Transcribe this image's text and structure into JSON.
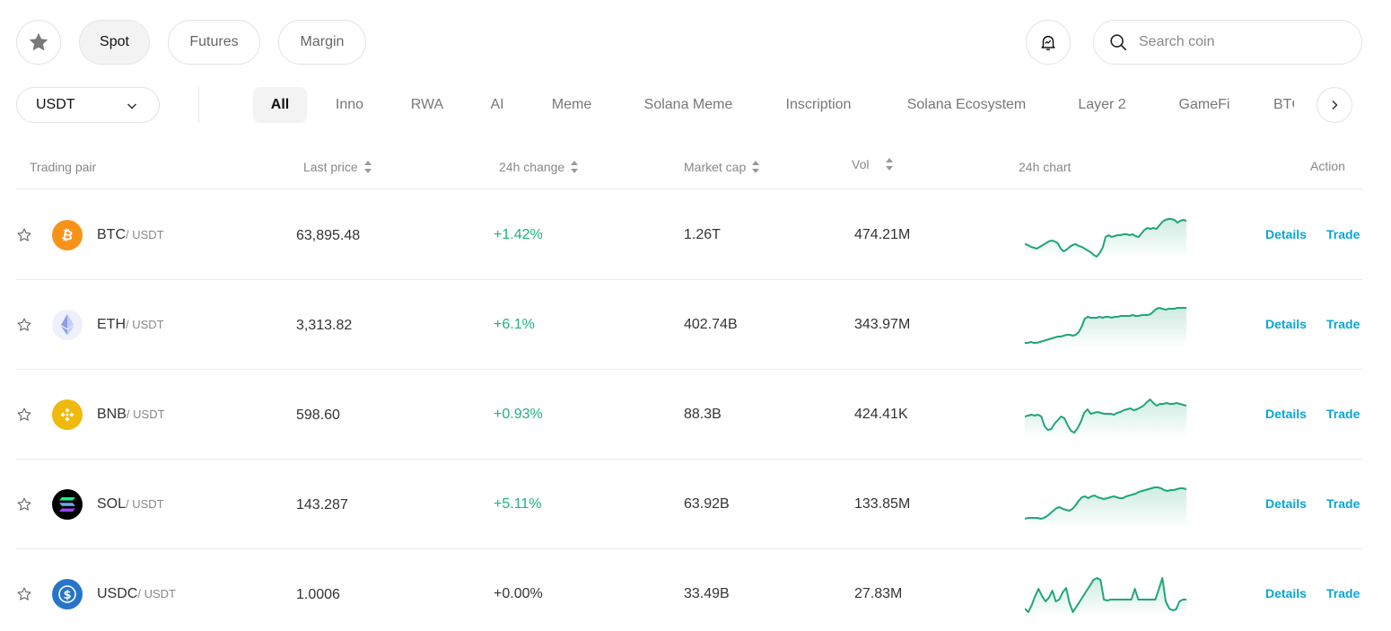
{
  "market_tabs": [
    {
      "label": "Spot",
      "active": true
    },
    {
      "label": "Futures",
      "active": false
    },
    {
      "label": "Margin",
      "active": false
    }
  ],
  "search": {
    "placeholder": "Search coin"
  },
  "quote_select": {
    "value": "USDT"
  },
  "categories": [
    "All",
    "Inno",
    "RWA",
    "AI",
    "Meme",
    "Solana Meme",
    "Inscription",
    "Solana Ecosystem",
    "Layer 2",
    "GameFi",
    "BTC"
  ],
  "active_category": "All",
  "columns": {
    "pair": "Trading pair",
    "price": "Last price",
    "change": "24h change",
    "mcap": "Market cap",
    "vol": "Vol",
    "chart": "24h chart",
    "action": "Action"
  },
  "rows": [
    {
      "base": "BTC",
      "quote": "/ USDT",
      "price": "63,895.48",
      "change": "+1.42%",
      "direction": "up",
      "mcap": "1.26T",
      "vol": "474.21M",
      "details": "Details",
      "trade": "Trade",
      "icon": "bitcoin-icon",
      "icon_color": "#f7931a",
      "spark": [
        30,
        31,
        33,
        34,
        35,
        33,
        31,
        29,
        27,
        26,
        27,
        29,
        35,
        38,
        36,
        33,
        31,
        30,
        32,
        33,
        35,
        37,
        39,
        42,
        44,
        40,
        34,
        22,
        20,
        22,
        21,
        20,
        20,
        19,
        19,
        20,
        19,
        21,
        22,
        18,
        14,
        12,
        13,
        12,
        13,
        9,
        5,
        3,
        2,
        2,
        3,
        6,
        4,
        3,
        4
      ]
    },
    {
      "base": "ETH",
      "quote": "/ USDT",
      "price": "3,313.82",
      "change": "+6.1%",
      "direction": "up",
      "mcap": "402.74B",
      "vol": "343.97M",
      "details": "Details",
      "trade": "Trade",
      "icon": "ethereum-icon",
      "icon_color": "#627eea",
      "spark": [
        40,
        40,
        39,
        40,
        40,
        39,
        38,
        37,
        36,
        35,
        34,
        33,
        33,
        32,
        31,
        31,
        32,
        31,
        28,
        22,
        13,
        11,
        12,
        12,
        12,
        11,
        12,
        11,
        11,
        12,
        11,
        11,
        10,
        10,
        10,
        10,
        9,
        10,
        10,
        9,
        9,
        9,
        8,
        5,
        2,
        1,
        2,
        3,
        2,
        2,
        2,
        1,
        1,
        1,
        1
      ]
    },
    {
      "base": "BNB",
      "quote": "/ USDT",
      "price": "598.60",
      "change": "+0.93%",
      "direction": "up",
      "mcap": "88.3B",
      "vol": "424.41K",
      "details": "Details",
      "trade": "Trade",
      "icon": "bnb-icon",
      "icon_color": "#f0b90b",
      "spark": [
        22,
        21,
        20,
        21,
        20,
        22,
        33,
        37,
        36,
        30,
        26,
        22,
        24,
        32,
        38,
        40,
        35,
        28,
        18,
        14,
        19,
        18,
        17,
        18,
        19,
        19,
        19,
        20,
        18,
        17,
        15,
        14,
        13,
        15,
        14,
        12,
        10,
        6,
        3,
        7,
        10,
        8,
        8,
        7,
        8,
        8,
        7,
        8,
        9,
        10
      ]
    },
    {
      "base": "SOL",
      "quote": "/ USDT",
      "price": "143.287",
      "change": "+5.11%",
      "direction": "up",
      "mcap": "63.92B",
      "vol": "133.85M",
      "details": "Details",
      "trade": "Trade",
      "icon": "solana-icon",
      "icon_color": "#000000",
      "spark": [
        36,
        35,
        35,
        35,
        35,
        36,
        35,
        33,
        30,
        27,
        24,
        23,
        25,
        26,
        27,
        25,
        21,
        16,
        12,
        11,
        13,
        11,
        10,
        12,
        13,
        14,
        13,
        12,
        11,
        12,
        13,
        13,
        11,
        10,
        9,
        8,
        6,
        5,
        4,
        3,
        2,
        1,
        1,
        2,
        4,
        5,
        4,
        4,
        3,
        2,
        2,
        3
      ]
    },
    {
      "base": "USDC",
      "quote": "/ USDT",
      "price": "1.0006",
      "change": "+0.00%",
      "direction": "flat",
      "mcap": "33.49B",
      "vol": "27.83M",
      "details": "Details",
      "trade": "Trade",
      "icon": "usdc-icon",
      "icon_color": "#2775ca",
      "spark": [
        36,
        40,
        32,
        22,
        14,
        22,
        28,
        24,
        16,
        28,
        26,
        18,
        13,
        30,
        40,
        34,
        28,
        22,
        16,
        10,
        4,
        2,
        4,
        26,
        27,
        26,
        26,
        26,
        26,
        26,
        26,
        26,
        14,
        26,
        26,
        26,
        26,
        26,
        26,
        14,
        2,
        28,
        36,
        38,
        37,
        28,
        26,
        26
      ]
    }
  ],
  "colors": {
    "positive": "#1db37a",
    "link": "#0aa5d8",
    "spark": "#1fa67a"
  },
  "icons": [
    "star-icon",
    "bell-icon",
    "search-icon",
    "chevron-down-icon",
    "chevron-right-icon",
    "sort-icon",
    "star-outline-icon"
  ]
}
